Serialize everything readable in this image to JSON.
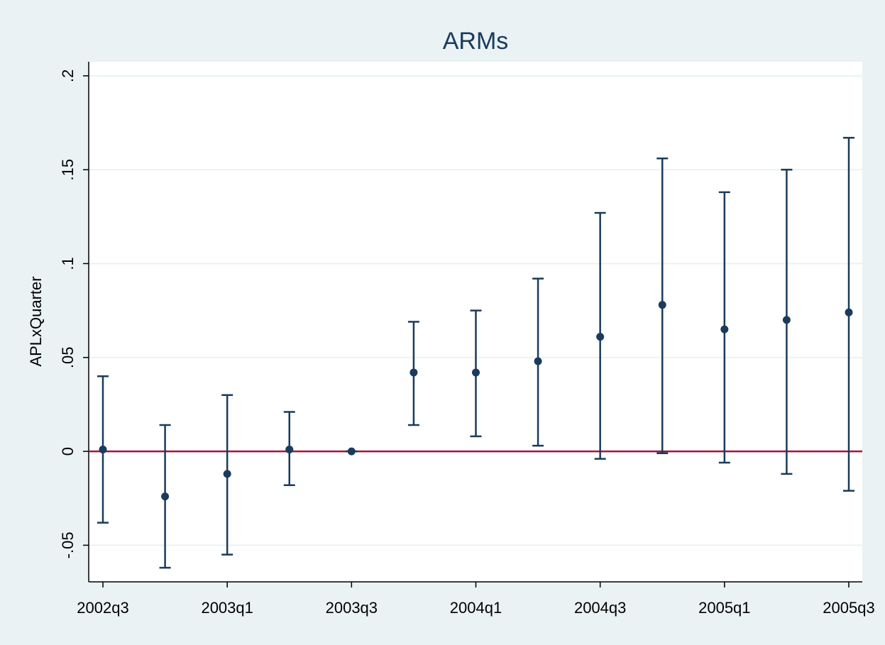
{
  "chart_data": {
    "type": "errorbar",
    "title": "ARMs",
    "y_label": "APLxQuarter",
    "categories": [
      "2002q3",
      null,
      "2003q1",
      null,
      "2003q3",
      null,
      "2004q1",
      null,
      "2004q3",
      null,
      "2005q1",
      null,
      "2005q3"
    ],
    "series": [
      {
        "color": "#1a3b5c",
        "values": [
          0.001,
          -0.024,
          -0.012,
          0.001,
          0,
          0.042,
          0.042,
          0.048,
          0.061,
          0.078,
          0.065,
          0.07,
          0.074
        ],
        "lower": [
          -0.038,
          -0.062,
          -0.055,
          -0.018,
          0,
          0.014,
          0.008,
          0.003,
          -0.004,
          -0.001,
          -0.006,
          -0.012,
          -0.021
        ],
        "upper": [
          0.04,
          0.014,
          0.03,
          0.021,
          0,
          0.069,
          0.075,
          0.092,
          0.127,
          0.156,
          0.138,
          0.15,
          0.167
        ]
      }
    ],
    "reference_line": {
      "value": 0,
      "color": "#a0153e"
    },
    "ylim": [
      -0.0695,
      0.2075
    ],
    "yticks": [
      {
        "value": -0.05,
        "label": "-.05"
      },
      0,
      {
        "value": 0.05,
        "label": ".05"
      },
      {
        "value": 0.1,
        "label": ".1"
      },
      {
        "value": 0.15,
        "label": ".15"
      },
      {
        "value": 0.2,
        "label": ".2"
      }
    ],
    "grid": true
  }
}
